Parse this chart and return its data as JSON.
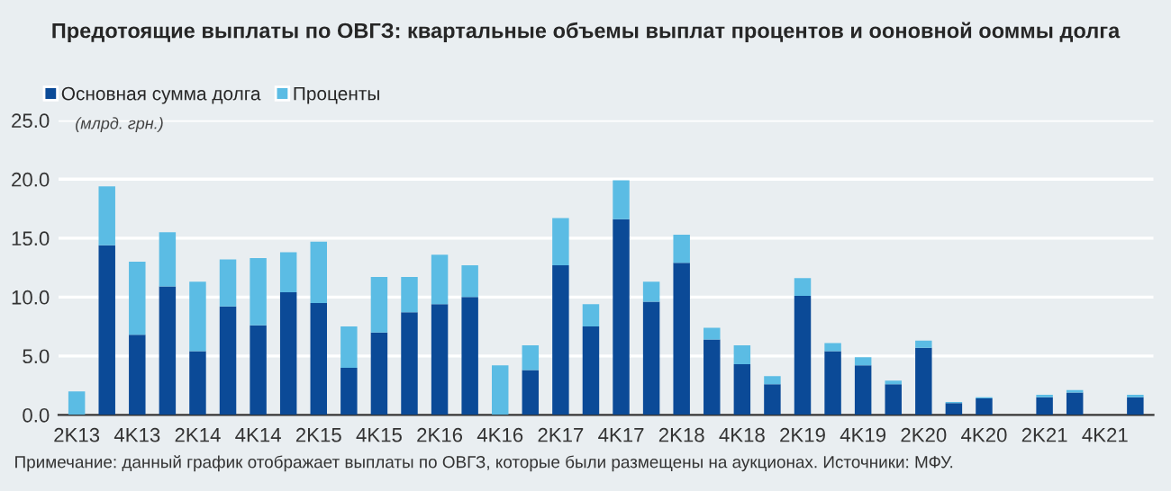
{
  "chart_data": {
    "type": "bar",
    "stacked": true,
    "title": "Предотоящие выплаты по ОВГЗ: квартальные объемы выплат процентов и ооновной ооммы долга",
    "ylabel": "(млрд. грн.)",
    "categories": [
      "2K13",
      null,
      "4K13",
      null,
      "2K14",
      null,
      "4K14",
      null,
      "2K15",
      null,
      "4K15",
      null,
      "2K16",
      null,
      "4K16",
      null,
      "2K17",
      null,
      "4K17",
      null,
      "2K18",
      null,
      "4K18",
      null,
      "2K19",
      null,
      "4K19",
      null,
      "2K20",
      null,
      "4K20",
      null,
      "2K21",
      null,
      "4K21",
      null
    ],
    "series": [
      {
        "name": "Основная сумма долга",
        "color": "#0b4a97",
        "values": [
          0,
          14.4,
          6.8,
          10.9,
          5.4,
          9.2,
          7.6,
          10.4,
          9.5,
          4.0,
          7.0,
          8.7,
          9.4,
          10.0,
          0,
          3.8,
          12.7,
          7.5,
          16.6,
          9.6,
          12.9,
          6.4,
          4.3,
          2.6,
          10.1,
          5.4,
          4.2,
          2.6,
          5.7,
          1.0,
          1.4,
          0,
          1.5,
          1.9,
          0,
          1.5
        ]
      },
      {
        "name": "Проценты",
        "color": "#5bbce4",
        "values": [
          2.0,
          5.0,
          6.2,
          4.6,
          5.9,
          4.0,
          5.7,
          3.4,
          5.2,
          3.5,
          4.7,
          3.0,
          4.2,
          2.7,
          4.2,
          2.1,
          4.0,
          1.9,
          3.3,
          1.7,
          2.4,
          1.0,
          1.6,
          0.7,
          1.5,
          0.7,
          0.7,
          0.3,
          0.6,
          0.1,
          0.1,
          0,
          0.2,
          0.2,
          0,
          0.2
        ]
      }
    ],
    "ylim": [
      0,
      25
    ],
    "yticks": [
      {
        "value": 0,
        "label": "0.0"
      },
      {
        "value": 5,
        "label": "5.0"
      },
      {
        "value": 10,
        "label": "10.0"
      },
      {
        "value": 15,
        "label": "15.0"
      },
      {
        "value": 20,
        "label": "20.0"
      },
      {
        "value": 25,
        "label": "25.0"
      }
    ],
    "grid": "y",
    "legend": "top left",
    "annotations": [
      "Примечание: данный график отображает выплаты по ОВГЗ, которые были размещены на аукционах. Источники: МФУ."
    ]
  }
}
